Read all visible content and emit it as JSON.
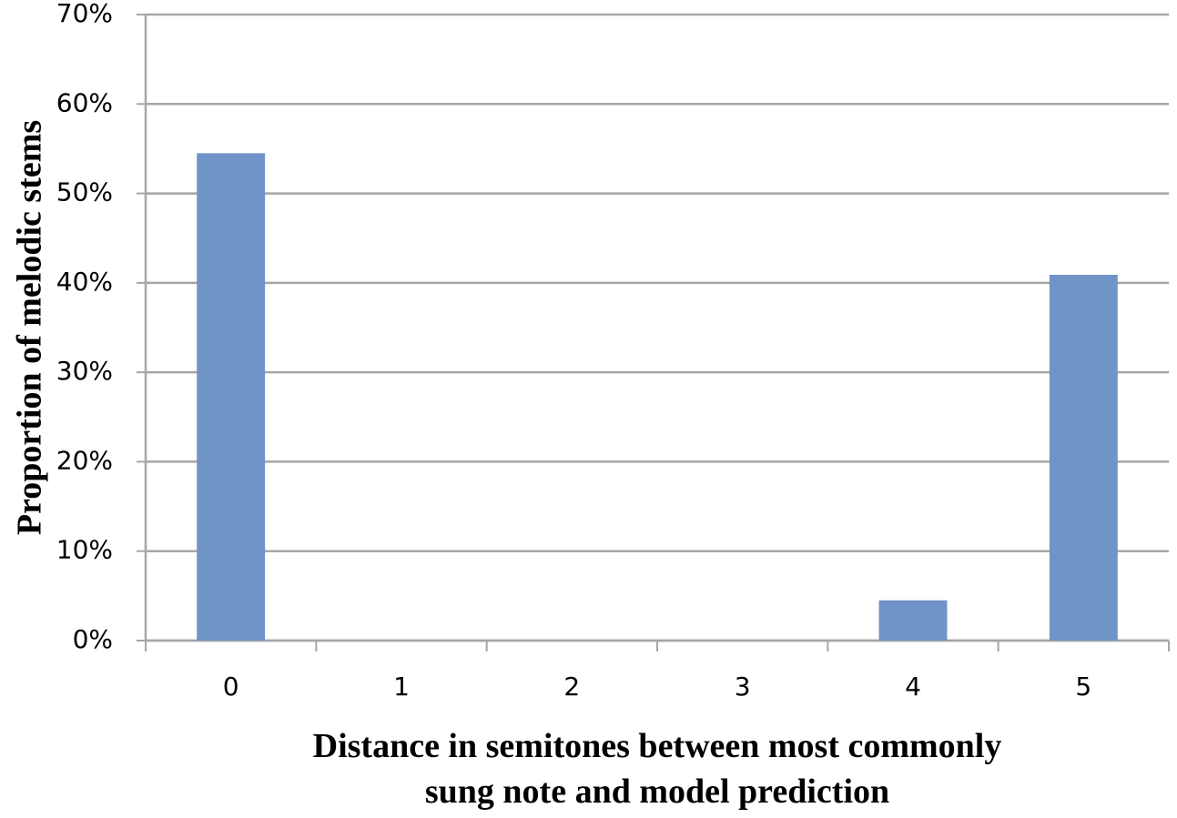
{
  "chart_data": {
    "type": "bar",
    "y_label": "Proportion of melodic stems",
    "x_label": [
      "Distance in semitones between most commonly",
      "sung note and model prediction"
    ],
    "categories": [
      "0",
      "1",
      "2",
      "3",
      "4",
      "5"
    ],
    "values": [
      54.5,
      0,
      0,
      0,
      4.5,
      40.9
    ],
    "color": "#7094c7",
    "ylim": [
      0,
      70
    ],
    "yticks": [
      {
        "value": 0,
        "label": "0%"
      },
      {
        "value": 10,
        "label": "10%"
      },
      {
        "value": 20,
        "label": "20%"
      },
      {
        "value": 30,
        "label": "30%"
      },
      {
        "value": 40,
        "label": "40%"
      },
      {
        "value": 50,
        "label": "50%"
      },
      {
        "value": 60,
        "label": "60%"
      },
      {
        "value": 70,
        "label": "70%"
      }
    ],
    "grid": true
  }
}
